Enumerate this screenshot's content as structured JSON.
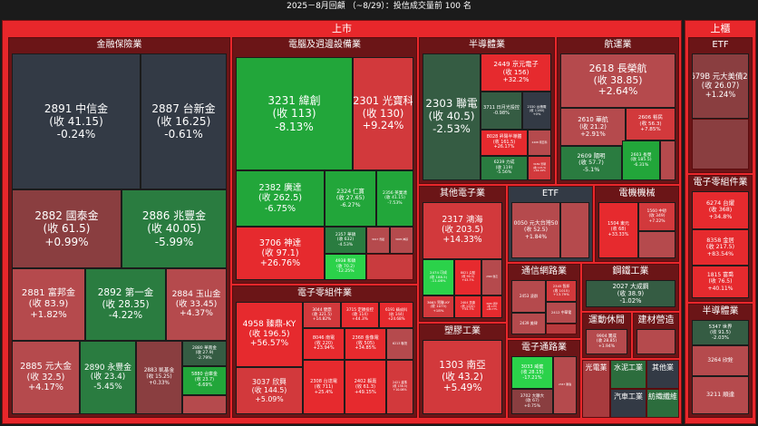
{
  "title": "2025－8月回顧 （~8/29）：投信成交量前 100 名",
  "colors": {
    "up_strong": "#e62a2e",
    "up_mid": "#d2393c",
    "up_weak": "#b54a4d",
    "up_faint": "#8a3e40",
    "flat": "#333a45",
    "down_faint": "#355c43",
    "down_mid": "#2a7c40",
    "down_strong": "#22a63a",
    "down_max": "#2bd24a"
  },
  "chart_data": {
    "type": "treemap",
    "title": "2025－8月回顧 （~8/29）：投信成交量前 100 名",
    "markets": [
      {
        "name": "上市",
        "sectors": [
          {
            "name": "金融保險業",
            "stocks": [
              {
                "code": "2891",
                "name": "中信金",
                "close": "41.15",
                "change": "-0.24%"
              },
              {
                "code": "2887",
                "name": "台新金",
                "close": "16.25",
                "change": "-0.61%"
              },
              {
                "code": "2882",
                "name": "國泰金",
                "close": "61.5",
                "change": "+0.99%"
              },
              {
                "code": "2886",
                "name": "兆豐金",
                "close": "40.05",
                "change": "-5.99%"
              },
              {
                "code": "2881",
                "name": "富邦金",
                "close": "83.9",
                "change": "+1.82%"
              },
              {
                "code": "2892",
                "name": "第一金",
                "close": "28.35",
                "change": "-4.22%"
              },
              {
                "code": "2884",
                "name": "玉山金",
                "close": "33.45",
                "change": "+4.37%"
              },
              {
                "code": "2885",
                "name": "元大金",
                "close": "32.5",
                "change": "+4.17%"
              },
              {
                "code": "2890",
                "name": "永豐金",
                "close": "23.4",
                "change": "-5.45%"
              },
              {
                "code": "2883",
                "name": "凱基金",
                "close": "15.25",
                "change": "+0.33%"
              },
              {
                "code": "2880",
                "name": "華南金",
                "close": "27.9",
                "change": "-2.79%"
              },
              {
                "code": "5880",
                "name": "合庫金",
                "close": "23.7",
                "change": "-6.69%"
              },
              {
                "code": "",
                "name": "",
                "close": "",
                "change": ""
              }
            ]
          },
          {
            "name": "電腦及週邊設備業",
            "stocks": [
              {
                "code": "3231",
                "name": "緯創",
                "close": "113",
                "change": "-8.13%"
              },
              {
                "code": "2301",
                "name": "光寶科",
                "close": "130",
                "change": "+9.24%"
              },
              {
                "code": "2382",
                "name": "廣達",
                "close": "262.5",
                "change": "-6.75%"
              },
              {
                "code": "2324",
                "name": "仁寶",
                "close": "27.65",
                "change": "-6.27%"
              },
              {
                "code": "2356",
                "name": "英業達",
                "close": "41.15",
                "change": "-7.53%"
              },
              {
                "code": "3706",
                "name": "神達",
                "close": "97.1",
                "change": "+26.76%"
              },
              {
                "code": "2357",
                "name": "華碩",
                "close": "632",
                "change": "-4.53%"
              },
              {
                "code": "3017",
                "name": "奇鋐",
                "close": "",
                "change": ""
              },
              {
                "code": "3005",
                "name": "神基",
                "close": "",
                "change": ""
              },
              {
                "code": "4938",
                "name": "和碩",
                "close": "70.2",
                "change": "-12.25%"
              }
            ]
          },
          {
            "name": "電子零組件業",
            "stocks": [
              {
                "code": "4958",
                "name": "臻鼎-KY",
                "close": "196.5",
                "change": "+56.57%"
              },
              {
                "code": "3044",
                "name": "健鼎",
                "close": "321.5",
                "change": "+14.82%"
              },
              {
                "code": "3715",
                "name": "定穎投控",
                "close": "114",
                "change": "+44.3%"
              },
              {
                "code": "6191",
                "name": "精成科",
                "close": "144",
                "change": "+24.68%"
              },
              {
                "code": "8046",
                "name": "南電",
                "close": "220",
                "change": "+23.94%"
              },
              {
                "code": "2368",
                "name": "金像電",
                "close": "505",
                "change": "+34.85%"
              },
              {
                "code": "6213",
                "name": "聯茂",
                "close": "",
                "change": ""
              },
              {
                "code": "3037",
                "name": "欣興",
                "close": "144.5",
                "change": "+5.09%"
              },
              {
                "code": "2308",
                "name": "台達電",
                "close": "711",
                "change": "+25.4%"
              },
              {
                "code": "2402",
                "name": "毅嘉",
                "close": "61.3",
                "change": "+49.15%"
              },
              {
                "code": "2421",
                "name": "建準",
                "close": "136.5",
                "change": "+10.06%"
              }
            ]
          },
          {
            "name": "半導體業",
            "stocks": [
              {
                "code": "2303",
                "name": "聯電",
                "close": "40.5",
                "change": "-2.53%"
              },
              {
                "code": "2449",
                "name": "京元電子",
                "close": "156",
                "change": "+32.2%"
              },
              {
                "code": "3711",
                "name": "日月光投控",
                "close": "",
                "change": "-0.98%"
              },
              {
                "code": "2330",
                "name": "台積電",
                "close": "1160",
                "change": "+0%"
              },
              {
                "code": "8028",
                "name": "昇陽半導體",
                "close": "161.5",
                "change": "+26.17%"
              },
              {
                "code": "2408",
                "name": "南亞科",
                "close": "",
                "change": ""
              },
              {
                "code": "6239",
                "name": "力成",
                "close": "119",
                "change": "-5.56%"
              },
              {
                "code": "3189",
                "name": "景碩",
                "close": "115.5",
                "change": "+16.19%"
              }
            ]
          },
          {
            "name": "航運業",
            "stocks": [
              {
                "code": "2618",
                "name": "長榮航",
                "close": "38.85",
                "change": "+2.64%"
              },
              {
                "code": "2610",
                "name": "華航",
                "close": "21.2",
                "change": "+2.91%"
              },
              {
                "code": "2606",
                "name": "裕民",
                "close": "56.3",
                "change": "+7.85%"
              },
              {
                "code": "2609",
                "name": "陽明",
                "close": "57.7",
                "change": "-5.1%"
              },
              {
                "code": "2603",
                "name": "長榮",
                "close": "185.5",
                "change": "-6.31%"
              },
              {
                "code": "",
                "name": "",
                "close": "",
                "change": ""
              }
            ]
          },
          {
            "name": "其他電子業",
            "stocks": [
              {
                "code": "2317",
                "name": "鴻海",
                "close": "203.5",
                "change": "+14.33%"
              },
              {
                "code": "2474",
                "name": "可成",
                "close": "188.5",
                "change": "-11.08%"
              },
              {
                "code": "8021",
                "name": "尖點",
                "close": "90.5",
                "change": "+43.7%"
              },
              {
                "code": "2360",
                "name": "致茂",
                "close": "",
                "change": ""
              },
              {
                "code": "3665",
                "name": "貿聯-KY",
                "close": "1075",
                "change": "+18%"
              },
              {
                "code": "2404",
                "name": "漢唐",
                "close": "1220",
                "change": "+55.7%"
              },
              {
                "code": "3030",
                "name": "德律",
                "close": "113",
                "change": "+40.77%"
              }
            ]
          },
          {
            "name": "ETF",
            "stocks": [
              {
                "code": "0050",
                "name": "元大台灣50",
                "close": "52.5",
                "change": "+1.84%"
              },
              {
                "code": "",
                "name": "",
                "close": "",
                "change": ""
              }
            ]
          },
          {
            "name": "電機機械",
            "stocks": [
              {
                "code": "1504",
                "name": "東元",
                "close": "68",
                "change": "+33.33%"
              },
              {
                "code": "1560",
                "name": "中砂",
                "close": "349",
                "change": "+7.22%"
              },
              {
                "code": "",
                "name": "",
                "close": "",
                "change": ""
              }
            ]
          },
          {
            "name": "通信網路業",
            "stocks": [
              {
                "code": "2453",
                "name": "凌群",
                "close": "",
                "change": ""
              },
              {
                "code": "2345",
                "name": "智邦",
                "close": "1015",
                "change": "+13.79%"
              },
              {
                "code": "2412",
                "name": "中華電",
                "close": "",
                "change": ""
              },
              {
                "code": "2439",
                "name": "美律",
                "close": "",
                "change": ""
              }
            ]
          },
          {
            "name": "鋼鐵工業",
            "stocks": [
              {
                "code": "2027",
                "name": "大成鋼",
                "close": "38.9",
                "change": "-1.02%"
              }
            ]
          },
          {
            "name": "運動休閒",
            "stocks": [
              {
                "code": "9904",
                "name": "寶成",
                "close": "28.85",
                "change": "+1.94%"
              }
            ]
          },
          {
            "name": "建材營造",
            "stocks": [
              {
                "code": "",
                "name": "",
                "close": "",
                "change": ""
              }
            ]
          },
          {
            "name": "電子通路業",
            "stocks": [
              {
                "code": "3033",
                "name": "威健",
                "close": "28.15",
                "change": "-17.21%"
              },
              {
                "code": "3702",
                "name": "大聯大",
                "close": "67",
                "change": "+0.75%"
              },
              {
                "code": "2347",
                "name": "聯強",
                "close": "",
                "change": ""
              }
            ]
          },
          {
            "name": "塑膠工業",
            "stocks": [
              {
                "code": "1303",
                "name": "南亞",
                "close": "43.2",
                "change": "+5.49%"
              }
            ]
          },
          {
            "name": "光電業",
            "stocks": []
          },
          {
            "name": "水泥工業",
            "stocks": []
          },
          {
            "name": "其他業",
            "stocks": []
          },
          {
            "name": "汽車工業",
            "stocks": []
          },
          {
            "name": "紡織纖維",
            "stocks": []
          }
        ]
      },
      {
        "name": "上櫃",
        "sectors": [
          {
            "name": "ETF",
            "stocks": [
              {
                "code": "00679B",
                "name": "元大美債20年",
                "close": "26.07",
                "change": "+1.24%"
              }
            ]
          },
          {
            "name": "電子零組件業",
            "stocks": [
              {
                "code": "6274",
                "name": "台燿",
                "close": "368",
                "change": "+34.8%"
              },
              {
                "code": "8358",
                "name": "金居",
                "close": "217.5",
                "change": "+83.54%"
              },
              {
                "code": "1815",
                "name": "富喬",
                "close": "76.5",
                "change": "+40.11%"
              }
            ]
          },
          {
            "name": "半導體業",
            "stocks": [
              {
                "code": "5347",
                "name": "世界",
                "close": "91.5",
                "change": "-2.03%"
              },
              {
                "code": "3264",
                "name": "欣銓",
                "close": "",
                "change": ""
              },
              {
                "code": "3211",
                "name": "順達",
                "close": "",
                "change": ""
              }
            ]
          }
        ]
      }
    ]
  }
}
